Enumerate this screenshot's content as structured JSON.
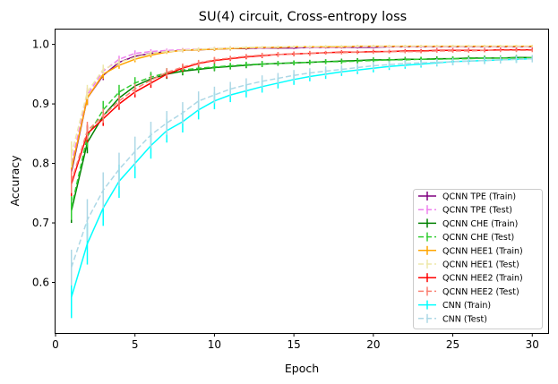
{
  "chart_data": {
    "type": "line",
    "title": "SU(4) circuit, Cross-entropy loss",
    "xlabel": "Epoch",
    "ylabel": "Accuracy",
    "xlim": [
      0,
      31
    ],
    "ylim": [
      0.515,
      1.025
    ],
    "xticks": [
      0,
      5,
      10,
      15,
      20,
      25,
      30
    ],
    "yticks": [
      0.6,
      0.7,
      0.8,
      0.9,
      1.0
    ],
    "ytick_labels": [
      "0.6",
      "0.7",
      "0.8",
      "0.9",
      "1.0"
    ],
    "grid": false,
    "legend_position": "lower-right",
    "x": [
      1,
      2,
      3,
      4,
      5,
      6,
      7,
      8,
      9,
      10,
      11,
      12,
      13,
      14,
      15,
      16,
      17,
      18,
      19,
      20,
      21,
      22,
      23,
      24,
      25,
      26,
      27,
      28,
      29,
      30
    ],
    "series": [
      {
        "name": "QCNN TPE (Train)",
        "color": "#800080",
        "dash": "solid",
        "values": [
          0.785,
          0.91,
          0.948,
          0.97,
          0.98,
          0.985,
          0.988,
          0.99,
          0.991,
          0.992,
          0.993,
          0.993,
          0.994,
          0.994,
          0.994,
          0.995,
          0.995,
          0.995,
          0.995,
          0.995,
          0.996,
          0.996,
          0.996,
          0.996,
          0.996,
          0.996,
          0.996,
          0.996,
          0.996,
          0.996
        ],
        "errors": [
          0.02,
          0.012,
          0.008,
          0.006,
          0.005,
          0.004,
          0.003,
          0.003,
          0.003,
          0.003,
          0.003,
          0.002,
          0.002,
          0.002,
          0.002,
          0.002,
          0.002,
          0.002,
          0.002,
          0.002,
          0.002,
          0.002,
          0.002,
          0.002,
          0.002,
          0.002,
          0.002,
          0.002,
          0.002,
          0.002
        ]
      },
      {
        "name": "QCNN TPE (Test)",
        "color": "#ee82ee",
        "dash": "dashed",
        "values": [
          0.8,
          0.915,
          0.955,
          0.975,
          0.985,
          0.988,
          0.99,
          0.991,
          0.992,
          0.993,
          0.994,
          0.994,
          0.994,
          0.995,
          0.995,
          0.995,
          0.995,
          0.995,
          0.996,
          0.996,
          0.996,
          0.996,
          0.996,
          0.996,
          0.996,
          0.996,
          0.996,
          0.996,
          0.996,
          0.996
        ],
        "errors": [
          0.02,
          0.012,
          0.008,
          0.006,
          0.005,
          0.004,
          0.003,
          0.003,
          0.003,
          0.003,
          0.003,
          0.002,
          0.002,
          0.002,
          0.002,
          0.002,
          0.002,
          0.002,
          0.002,
          0.002,
          0.002,
          0.002,
          0.002,
          0.002,
          0.002,
          0.002,
          0.002,
          0.002,
          0.002,
          0.002
        ]
      },
      {
        "name": "QCNN CHE (Train)",
        "color": "#008000",
        "dash": "solid",
        "values": [
          0.72,
          0.835,
          0.88,
          0.91,
          0.93,
          0.942,
          0.95,
          0.955,
          0.958,
          0.961,
          0.963,
          0.965,
          0.967,
          0.968,
          0.969,
          0.97,
          0.971,
          0.972,
          0.973,
          0.974,
          0.974,
          0.975,
          0.975,
          0.976,
          0.976,
          0.977,
          0.977,
          0.977,
          0.978,
          0.978
        ],
        "errors": [
          0.02,
          0.018,
          0.015,
          0.012,
          0.01,
          0.009,
          0.008,
          0.007,
          0.006,
          0.006,
          0.005,
          0.005,
          0.005,
          0.004,
          0.004,
          0.004,
          0.004,
          0.004,
          0.004,
          0.004,
          0.004,
          0.004,
          0.004,
          0.004,
          0.004,
          0.004,
          0.004,
          0.004,
          0.004,
          0.004
        ]
      },
      {
        "name": "QCNN CHE (Test)",
        "color": "#32cd32",
        "dash": "dashed",
        "values": [
          0.725,
          0.845,
          0.89,
          0.92,
          0.935,
          0.945,
          0.952,
          0.957,
          0.96,
          0.962,
          0.964,
          0.966,
          0.967,
          0.968,
          0.969,
          0.97,
          0.971,
          0.971,
          0.972,
          0.973,
          0.974,
          0.974,
          0.975,
          0.975,
          0.976,
          0.976,
          0.977,
          0.977,
          0.977,
          0.978
        ],
        "errors": [
          0.02,
          0.018,
          0.015,
          0.012,
          0.01,
          0.009,
          0.008,
          0.007,
          0.006,
          0.006,
          0.005,
          0.005,
          0.005,
          0.004,
          0.004,
          0.004,
          0.004,
          0.004,
          0.004,
          0.004,
          0.004,
          0.004,
          0.004,
          0.004,
          0.004,
          0.004,
          0.004,
          0.004,
          0.004,
          0.004
        ]
      },
      {
        "name": "QCNN HEE1 (Train)",
        "color": "#ffa500",
        "dash": "solid",
        "values": [
          0.79,
          0.91,
          0.95,
          0.965,
          0.975,
          0.982,
          0.987,
          0.99,
          0.991,
          0.992,
          0.993,
          0.994,
          0.995,
          0.995,
          0.996,
          0.996,
          0.996,
          0.996,
          0.997,
          0.997,
          0.997,
          0.997,
          0.997,
          0.997,
          0.997,
          0.997,
          0.997,
          0.997,
          0.997,
          0.997
        ],
        "errors": [
          0.02,
          0.012,
          0.008,
          0.006,
          0.005,
          0.004,
          0.003,
          0.003,
          0.003,
          0.003,
          0.003,
          0.002,
          0.002,
          0.002,
          0.002,
          0.002,
          0.002,
          0.002,
          0.002,
          0.002,
          0.002,
          0.002,
          0.002,
          0.002,
          0.002,
          0.002,
          0.002,
          0.002,
          0.002,
          0.002
        ]
      },
      {
        "name": "QCNN HEE1 (Test)",
        "color": "#eee8aa",
        "dash": "dashed",
        "values": [
          0.815,
          0.92,
          0.958,
          0.97,
          0.978,
          0.985,
          0.988,
          0.99,
          0.992,
          0.993,
          0.994,
          0.995,
          0.995,
          0.996,
          0.996,
          0.996,
          0.997,
          0.997,
          0.997,
          0.997,
          0.997,
          0.997,
          0.997,
          0.997,
          0.997,
          0.997,
          0.997,
          0.997,
          0.997,
          0.997
        ],
        "errors": [
          0.022,
          0.012,
          0.008,
          0.006,
          0.005,
          0.004,
          0.003,
          0.003,
          0.003,
          0.003,
          0.003,
          0.002,
          0.002,
          0.002,
          0.002,
          0.002,
          0.002,
          0.002,
          0.002,
          0.002,
          0.002,
          0.002,
          0.002,
          0.002,
          0.002,
          0.002,
          0.002,
          0.002,
          0.002,
          0.002
        ]
      },
      {
        "name": "QCNN HEE2 (Train)",
        "color": "#ff0000",
        "dash": "solid",
        "values": [
          0.765,
          0.85,
          0.875,
          0.9,
          0.92,
          0.935,
          0.95,
          0.96,
          0.968,
          0.973,
          0.976,
          0.979,
          0.981,
          0.983,
          0.984,
          0.985,
          0.986,
          0.987,
          0.987,
          0.988,
          0.988,
          0.989,
          0.989,
          0.99,
          0.99,
          0.99,
          0.99,
          0.991,
          0.991,
          0.991
        ],
        "errors": [
          0.02,
          0.015,
          0.012,
          0.01,
          0.009,
          0.008,
          0.007,
          0.006,
          0.005,
          0.005,
          0.004,
          0.004,
          0.004,
          0.004,
          0.004,
          0.004,
          0.003,
          0.003,
          0.003,
          0.003,
          0.003,
          0.003,
          0.003,
          0.003,
          0.003,
          0.003,
          0.003,
          0.003,
          0.003,
          0.003
        ]
      },
      {
        "name": "QCNN HEE2 (Test)",
        "color": "#fa8072",
        "dash": "dashed",
        "values": [
          0.77,
          0.855,
          0.88,
          0.905,
          0.925,
          0.94,
          0.953,
          0.962,
          0.969,
          0.974,
          0.977,
          0.98,
          0.982,
          0.983,
          0.984,
          0.985,
          0.986,
          0.986,
          0.987,
          0.987,
          0.988,
          0.988,
          0.988,
          0.989,
          0.989,
          0.989,
          0.99,
          0.99,
          0.99,
          0.99
        ],
        "errors": [
          0.02,
          0.015,
          0.012,
          0.01,
          0.009,
          0.008,
          0.007,
          0.006,
          0.005,
          0.005,
          0.004,
          0.004,
          0.004,
          0.004,
          0.004,
          0.004,
          0.003,
          0.003,
          0.003,
          0.003,
          0.003,
          0.003,
          0.003,
          0.003,
          0.003,
          0.003,
          0.003,
          0.003,
          0.003,
          0.003
        ]
      },
      {
        "name": "CNN (Train)",
        "color": "#00ffff",
        "dash": "solid",
        "values": [
          0.575,
          0.665,
          0.725,
          0.77,
          0.8,
          0.83,
          0.855,
          0.87,
          0.89,
          0.905,
          0.915,
          0.922,
          0.929,
          0.935,
          0.941,
          0.946,
          0.95,
          0.954,
          0.957,
          0.96,
          0.963,
          0.965,
          0.967,
          0.969,
          0.971,
          0.972,
          0.973,
          0.974,
          0.975,
          0.976
        ],
        "errors": [
          0.035,
          0.035,
          0.03,
          0.028,
          0.025,
          0.022,
          0.02,
          0.018,
          0.016,
          0.014,
          0.012,
          0.011,
          0.01,
          0.009,
          0.009,
          0.008,
          0.008,
          0.007,
          0.007,
          0.007,
          0.006,
          0.006,
          0.006,
          0.006,
          0.006,
          0.006,
          0.006,
          0.006,
          0.006,
          0.006
        ]
      },
      {
        "name": "CNN (Test)",
        "color": "#add8e6",
        "dash": "dashed",
        "values": [
          0.625,
          0.705,
          0.755,
          0.79,
          0.82,
          0.848,
          0.868,
          0.885,
          0.905,
          0.915,
          0.925,
          0.932,
          0.938,
          0.943,
          0.948,
          0.952,
          0.955,
          0.958,
          0.961,
          0.964,
          0.966,
          0.968,
          0.969,
          0.97,
          0.971,
          0.972,
          0.973,
          0.974,
          0.975,
          0.976
        ],
        "errors": [
          0.03,
          0.035,
          0.03,
          0.028,
          0.025,
          0.022,
          0.02,
          0.018,
          0.016,
          0.014,
          0.012,
          0.011,
          0.01,
          0.009,
          0.009,
          0.008,
          0.008,
          0.007,
          0.007,
          0.007,
          0.006,
          0.006,
          0.006,
          0.006,
          0.006,
          0.006,
          0.006,
          0.006,
          0.006,
          0.006
        ]
      }
    ]
  }
}
